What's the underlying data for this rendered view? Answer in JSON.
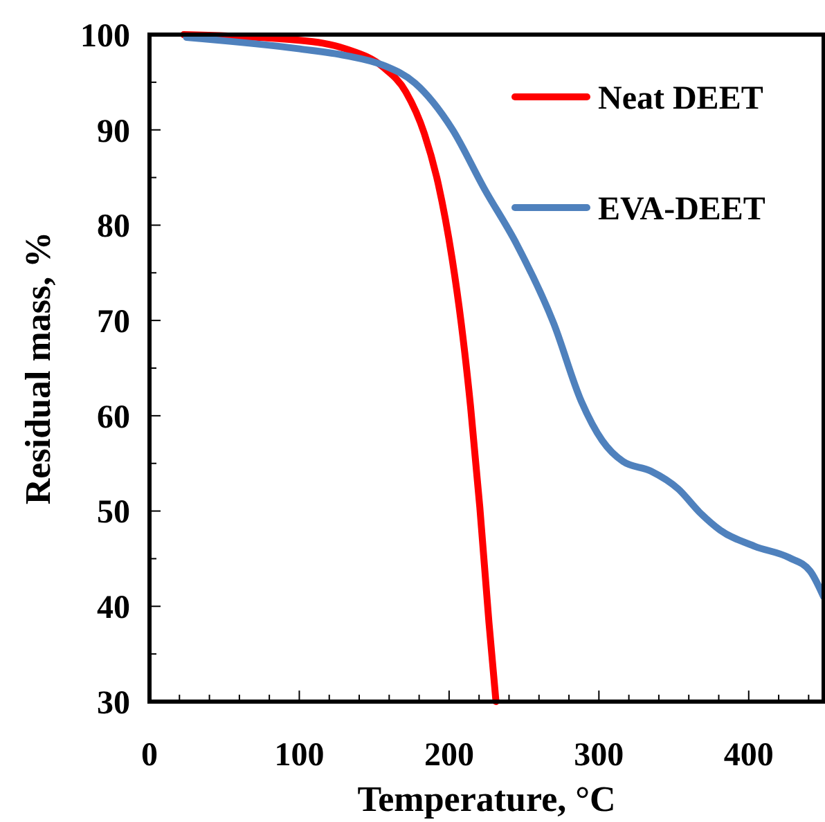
{
  "chart_data": {
    "type": "line",
    "xlabel": "Temperature, °C",
    "ylabel": "Residual mass, %",
    "xlim": [
      0,
      450
    ],
    "xticks": [
      0,
      100,
      200,
      300,
      400
    ],
    "ylim": [
      30,
      100
    ],
    "yticks": [
      30,
      40,
      50,
      60,
      70,
      80,
      90,
      100
    ],
    "legend": "top right",
    "grid": false,
    "marker": "none",
    "line_style": "solid",
    "series": [
      {
        "name": "Neat DEET",
        "color": "#ff0000",
        "x": [
          22.8,
          100.3,
          131,
          155.8,
          171.1,
          183.5,
          192.8,
          202,
          208.1,
          214.3,
          220.5,
          226.6,
          231.3
        ],
        "values": [
          100,
          99.4,
          98.5,
          96.6,
          94,
          89.6,
          84.3,
          76.5,
          69.7,
          61,
          50.4,
          38.3,
          30
        ]
      },
      {
        "name": "EVA-DEET",
        "color": "#4f81bd",
        "x": [
          24.7,
          100.3,
          131,
          155.8,
          177.3,
          202,
          223.6,
          245.1,
          269.8,
          288.3,
          302.2,
          316.1,
          334.6,
          353.1,
          367,
          380.9,
          404,
          427.1,
          441,
          450
        ],
        "values": [
          99.7,
          98.5,
          97.8,
          96.8,
          94.9,
          90.1,
          83.8,
          78,
          69.7,
          61.5,
          57.4,
          55.2,
          54.2,
          52.3,
          49.9,
          48,
          46.3,
          45.1,
          43.7,
          41
        ]
      }
    ]
  }
}
